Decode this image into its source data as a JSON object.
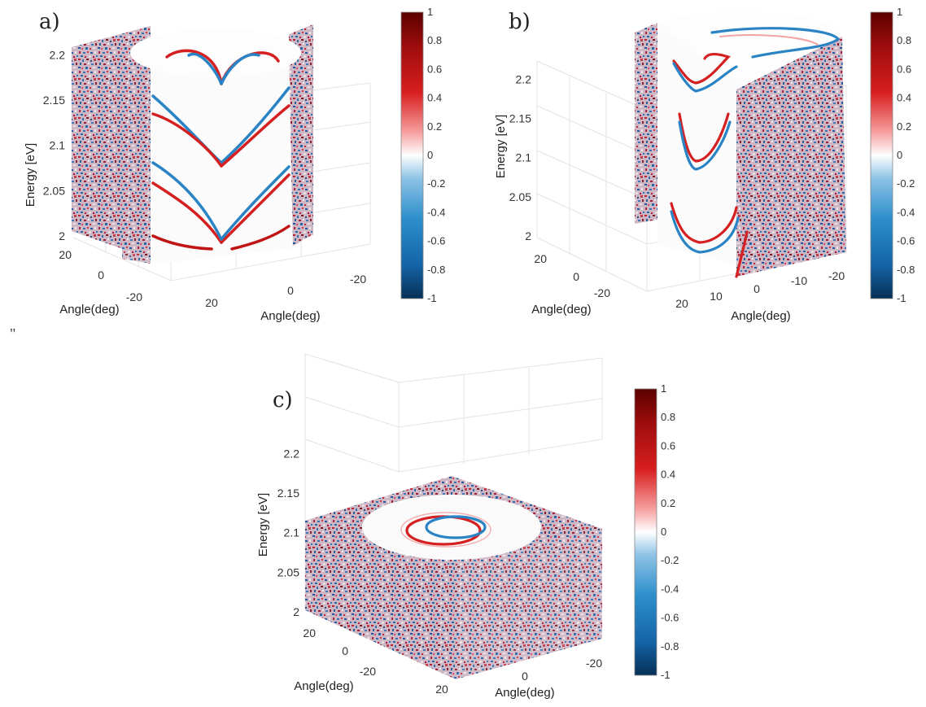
{
  "stray_mark": "\"",
  "colorbar": {
    "ticks": [
      1,
      0.8,
      0.6,
      0.4,
      0.2,
      0,
      -0.2,
      -0.4,
      -0.6,
      -0.8,
      -1
    ],
    "colors": [
      "#063056",
      "#1565a8",
      "#2d8fcb",
      "#8ec3e6",
      "#ffffff",
      "#f6a0a0",
      "#d81e1e",
      "#9e0d0d",
      "#5c0000"
    ]
  },
  "chart_data": [
    {
      "panel": "a)",
      "type": "3d-volume-slice",
      "zlabel": "Energy [eV]",
      "xlabel": "Angle(deg)",
      "ylabel": "Angle(deg)",
      "z_ticks": [
        "2",
        "2.05",
        "2.1",
        "2.15",
        "2.2"
      ],
      "x_ticks": [
        "20",
        "0",
        "-20"
      ],
      "y_ticks": [
        "20",
        "0",
        "-20"
      ],
      "zlim": [
        2,
        2.22
      ],
      "clim": [
        -1,
        1
      ],
      "description_of_cut": "front quadrant removed revealing dispersion branches"
    },
    {
      "panel": "b)",
      "type": "3d-volume-slice",
      "zlabel": "Energy [eV]",
      "xlabel": "Angle(deg)",
      "ylabel": "Angle(deg)",
      "z_ticks": [
        "2",
        "2.05",
        "2.1",
        "2.15",
        "2.2"
      ],
      "x_ticks": [
        "20",
        "10",
        "0",
        "-10",
        "-20"
      ],
      "y_ticks": [
        "20",
        "0",
        "-20"
      ],
      "zlim": [
        2,
        2.22
      ],
      "clim": [
        -1,
        1
      ]
    },
    {
      "panel": "c)",
      "type": "3d-volume-slice",
      "zlabel": "Energy [eV]",
      "xlabel": "Angle(deg)",
      "ylabel": "Angle(deg)",
      "z_ticks": [
        "2",
        "2.05",
        "2.1",
        "2.15",
        "2.2"
      ],
      "x_ticks": [
        "20",
        "0",
        "-20"
      ],
      "y_ticks": [
        "20",
        "0",
        "-20"
      ],
      "zlim": [
        2,
        2.22
      ],
      "clim": [
        -1,
        1
      ],
      "slice_energy": 2.1
    }
  ]
}
